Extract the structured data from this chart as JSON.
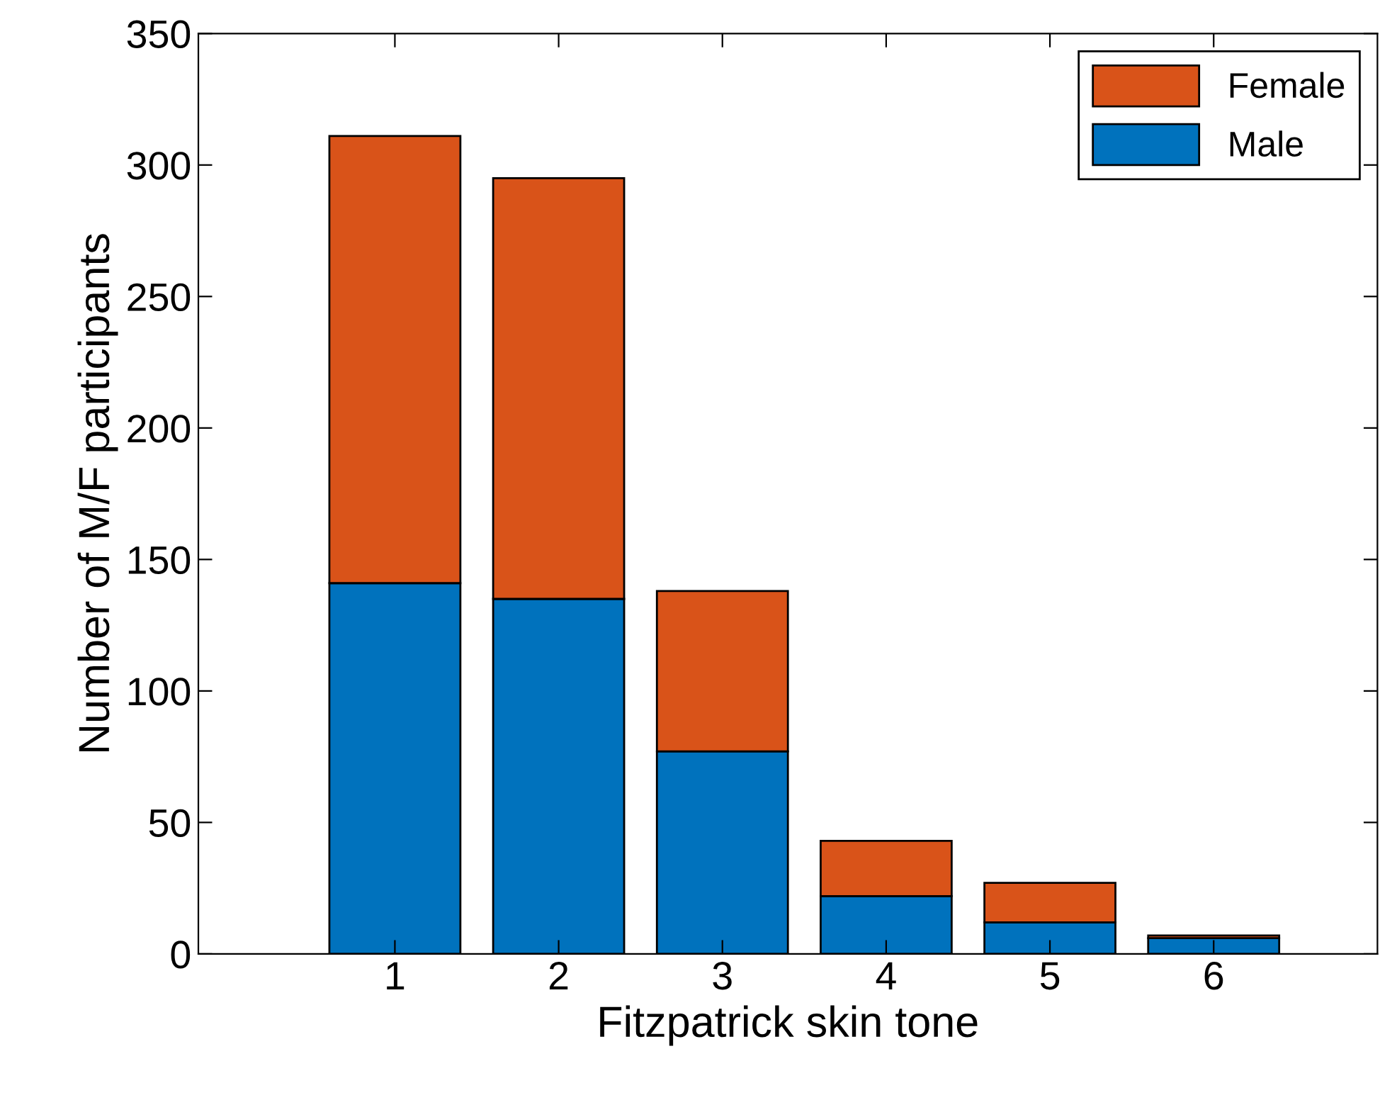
{
  "chart_data": {
    "type": "bar",
    "stacked": true,
    "xlabel": "Fitzpatrick skin tone",
    "ylabel": "Number of M/F participants",
    "x": [
      1,
      2,
      3,
      4,
      5,
      6
    ],
    "xlim": [
      -0.2,
      7
    ],
    "xticks": [
      1,
      2,
      3,
      4,
      5,
      6
    ],
    "ylim": [
      0,
      350
    ],
    "yticks": [
      0,
      50,
      100,
      150,
      200,
      250,
      300,
      350
    ],
    "series": [
      {
        "name": "Male",
        "color": "#0072bd",
        "values": [
          141,
          135,
          77,
          22,
          12,
          6
        ]
      },
      {
        "name": "Female",
        "color": "#d95319",
        "values": [
          170,
          160,
          61,
          21,
          15,
          1
        ]
      }
    ],
    "legend": "top right",
    "grid": false
  }
}
